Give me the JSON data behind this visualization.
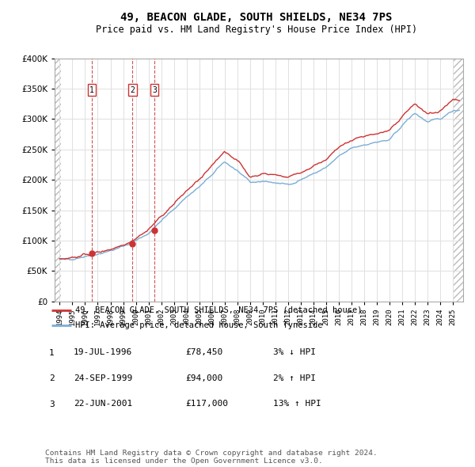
{
  "title": "49, BEACON GLADE, SOUTH SHIELDS, NE34 7PS",
  "subtitle": "Price paid vs. HM Land Registry's House Price Index (HPI)",
  "title_fontsize": 10,
  "subtitle_fontsize": 8.5,
  "ylim": [
    0,
    400000
  ],
  "yticks": [
    0,
    50000,
    100000,
    150000,
    200000,
    250000,
    300000,
    350000,
    400000
  ],
  "ytick_labels": [
    "£0",
    "£50K",
    "£100K",
    "£150K",
    "£200K",
    "£250K",
    "£300K",
    "£350K",
    "£400K"
  ],
  "xlim_start": 1993.6,
  "xlim_end": 2025.8,
  "hpi_color": "#7aaed6",
  "price_color": "#cc3333",
  "grid_color": "#e0e0e0",
  "transactions": [
    {
      "num": 1,
      "date": "19-JUL-1996",
      "price": 78450,
      "pct": "3%",
      "dir": "↓",
      "x": 1996.54
    },
    {
      "num": 2,
      "date": "24-SEP-1999",
      "price": 94000,
      "pct": "2%",
      "dir": "↑",
      "x": 1999.73
    },
    {
      "num": 3,
      "date": "22-JUN-2001",
      "price": 117000,
      "pct": "13%",
      "dir": "↑",
      "x": 2001.47
    }
  ],
  "legend_label_red": "49, BEACON GLADE, SOUTH SHIELDS, NE34 7PS (detached house)",
  "legend_label_blue": "HPI: Average price, detached house, South Tyneside",
  "footer": "Contains HM Land Registry data © Crown copyright and database right 2024.\nThis data is licensed under the Open Government Licence v3.0.",
  "background_color": "#ffffff"
}
